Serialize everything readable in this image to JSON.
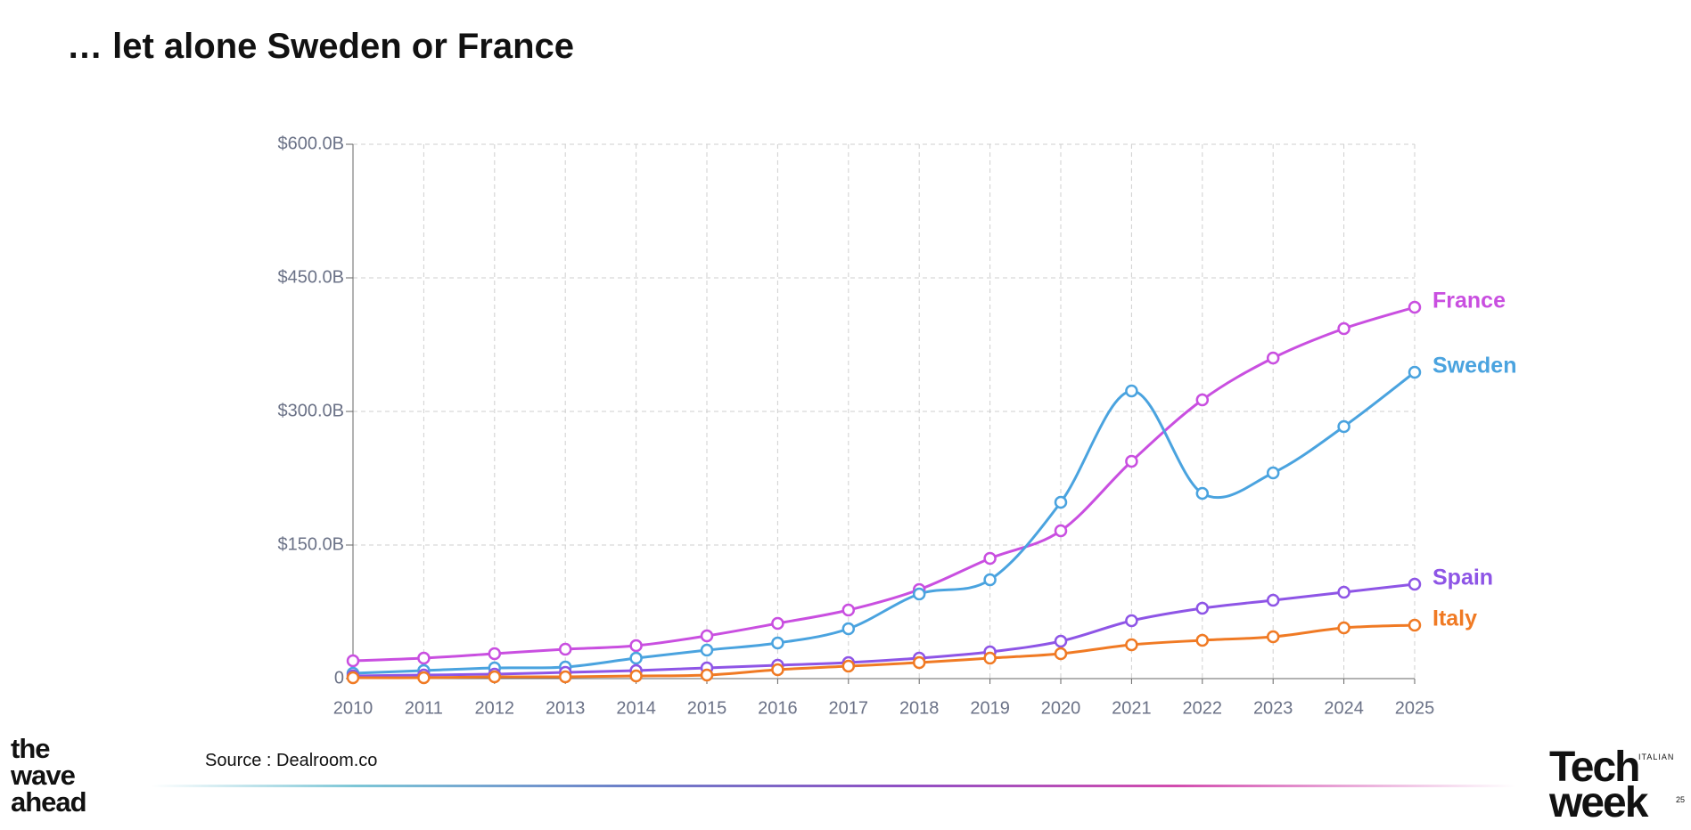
{
  "title": "… let alone Sweden or France",
  "source": "Source : Dealroom.co",
  "branding": {
    "left_logo": [
      "the",
      "wave",
      "ahead"
    ],
    "right_logo": {
      "small": "ITALIAN",
      "lines": [
        "Tech",
        "week"
      ],
      "number": "25"
    }
  },
  "chart_data": {
    "type": "line",
    "x": [
      2010,
      2011,
      2012,
      2013,
      2014,
      2015,
      2016,
      2017,
      2018,
      2019,
      2020,
      2021,
      2022,
      2023,
      2024,
      2025
    ],
    "xlim": [
      2010,
      2025
    ],
    "xticks": [
      2010,
      2011,
      2012,
      2013,
      2014,
      2015,
      2016,
      2017,
      2018,
      2019,
      2020,
      2021,
      2022,
      2023,
      2024,
      2025
    ],
    "ylim": [
      0,
      600
    ],
    "yticks": [
      0,
      {
        "value": 150,
        "label": "$150.0B"
      },
      {
        "value": 300,
        "label": "$300.0B"
      },
      {
        "value": 450,
        "label": "$450.0B"
      },
      {
        "value": 600,
        "label": "$600.0B"
      }
    ],
    "grid": true,
    "series": [
      {
        "name": "France",
        "color": "#c94fe0",
        "values": [
          20,
          23,
          28,
          33,
          37,
          48,
          62,
          77,
          100,
          135,
          166,
          244,
          313,
          360,
          393,
          417
        ]
      },
      {
        "name": "Sweden",
        "color": "#4aa3df",
        "values": [
          6,
          9,
          12,
          13,
          23,
          32,
          40,
          56,
          95,
          111,
          198,
          323,
          208,
          231,
          283,
          344
        ]
      },
      {
        "name": "Spain",
        "color": "#8e55e6",
        "values": [
          3,
          4,
          5,
          7,
          9,
          12,
          15,
          18,
          23,
          30,
          42,
          65,
          79,
          88,
          97,
          106
        ]
      },
      {
        "name": "Italy",
        "color": "#f07a24",
        "values": [
          1,
          1,
          2,
          2,
          3,
          4,
          10,
          14,
          18,
          23,
          28,
          38,
          43,
          47,
          57,
          60
        ]
      }
    ]
  }
}
